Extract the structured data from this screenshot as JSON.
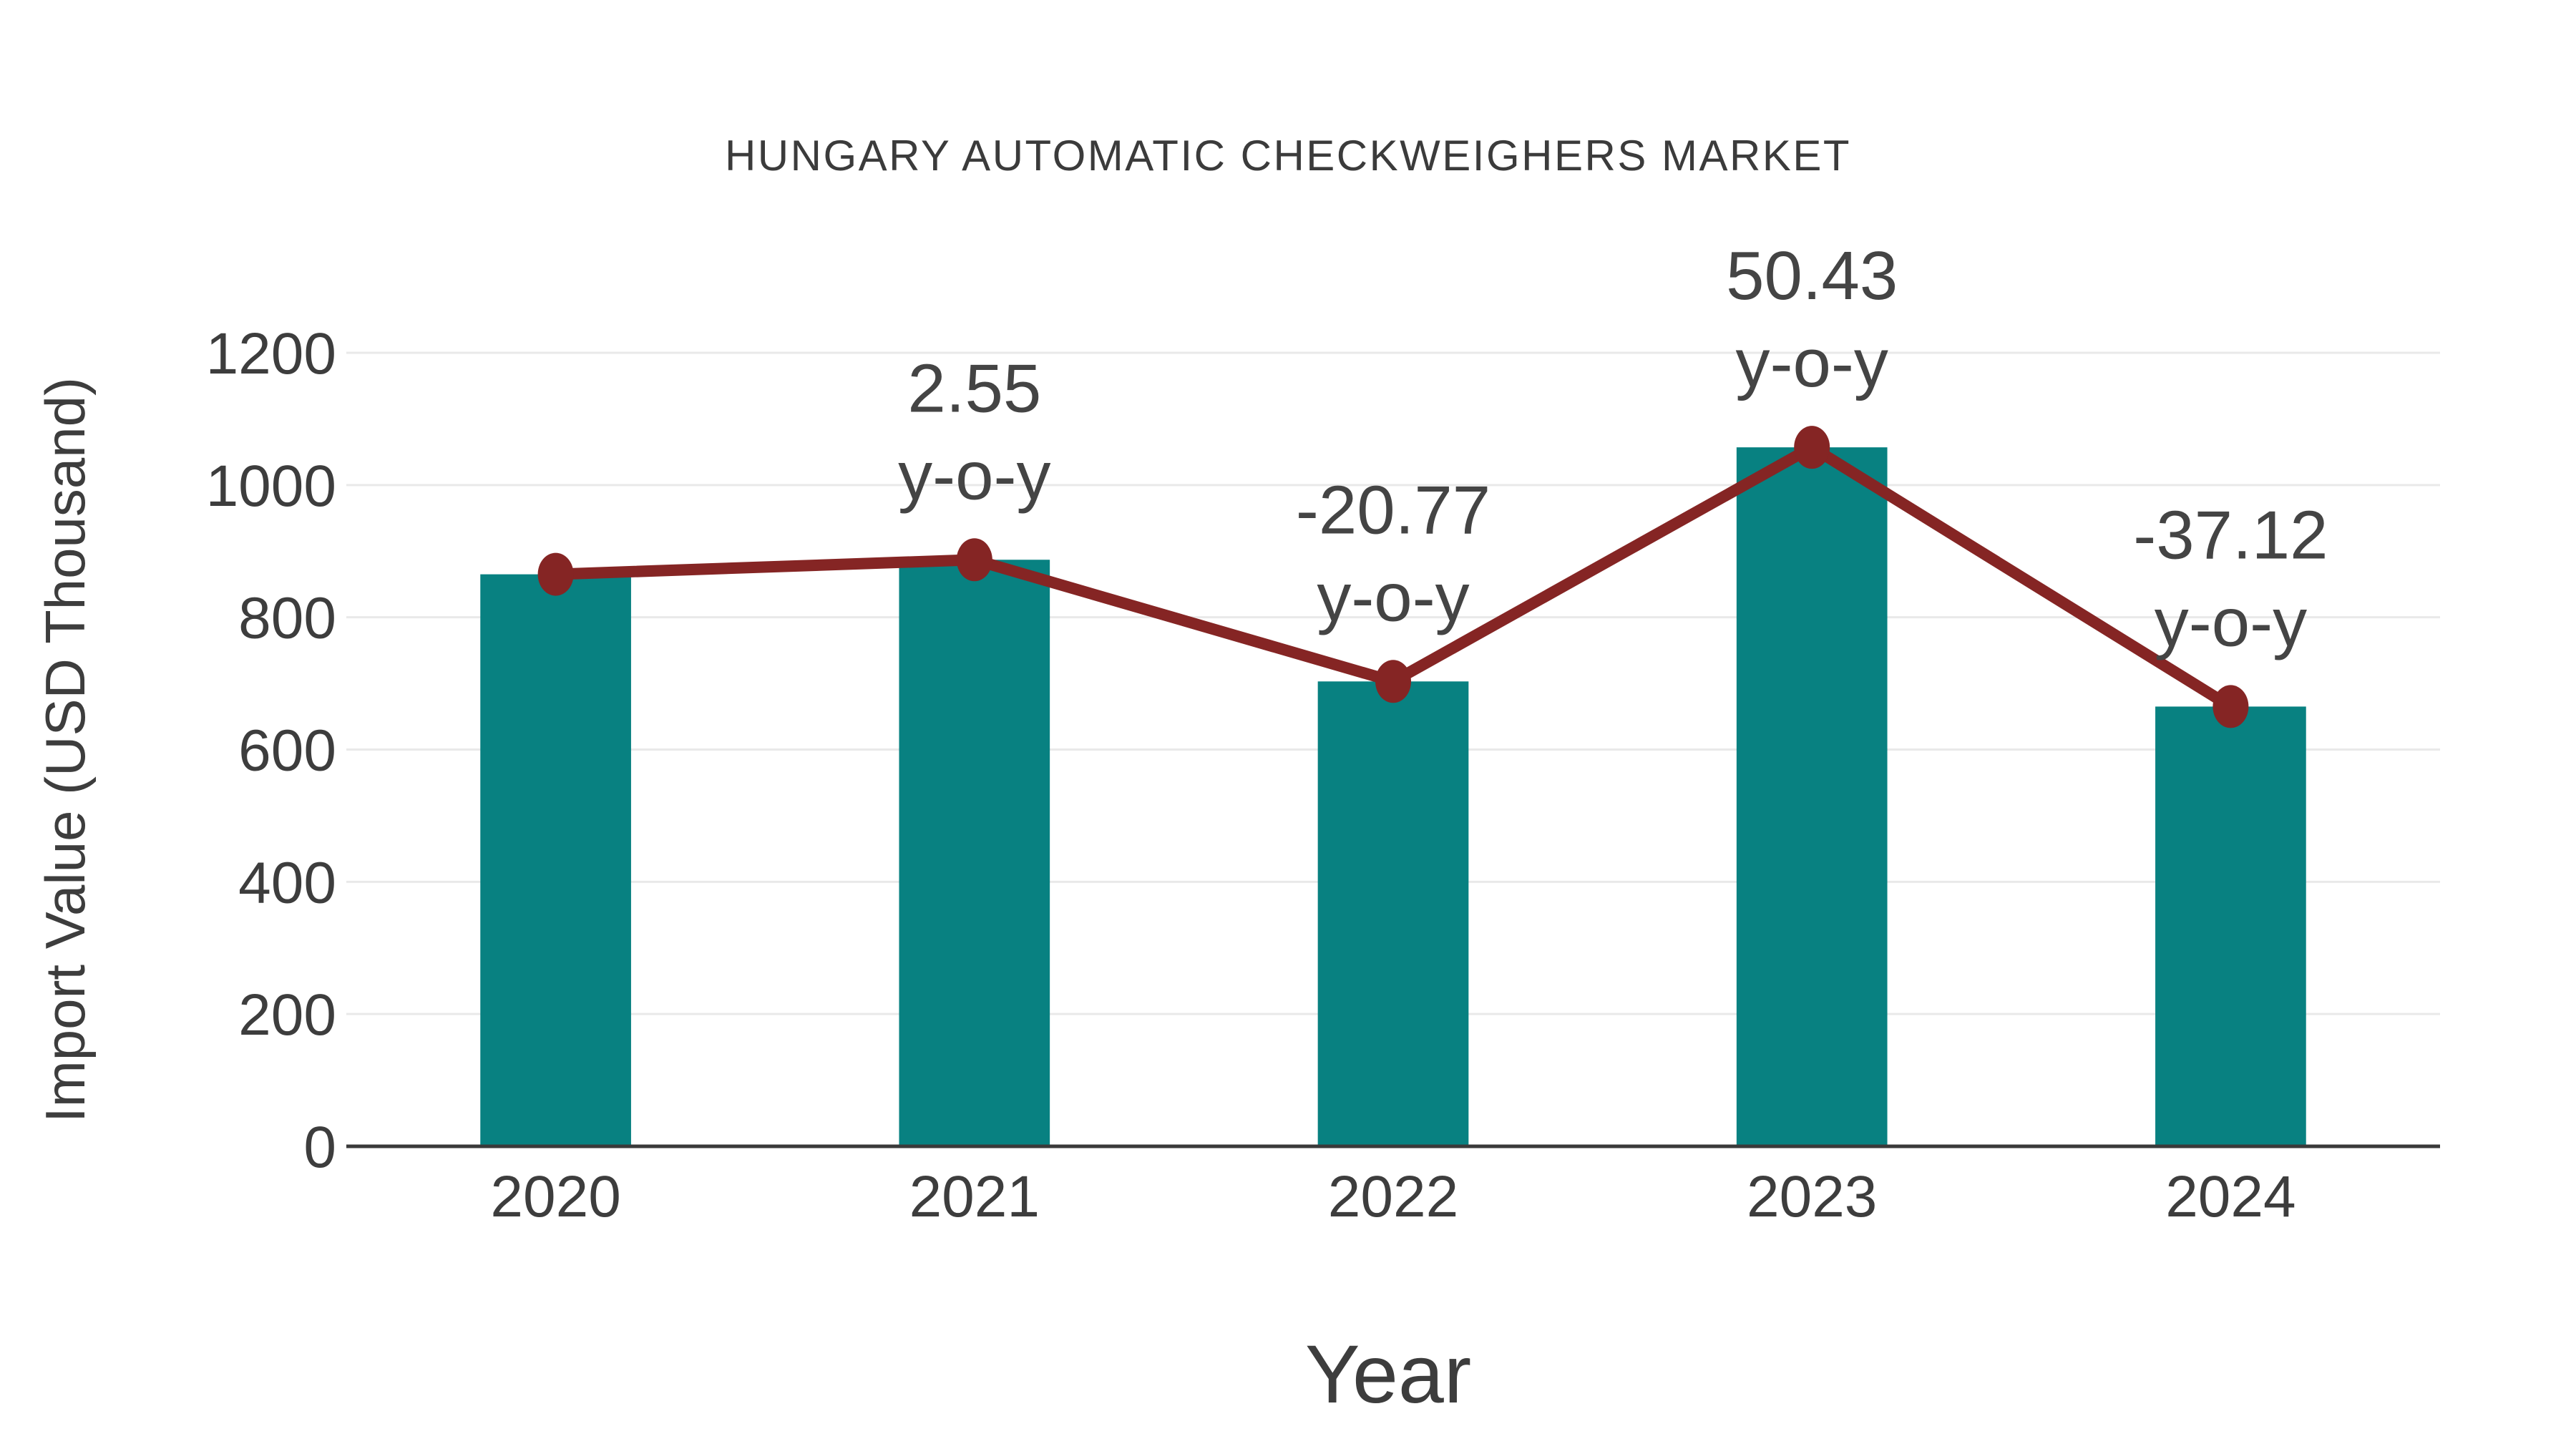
{
  "page": {
    "background": "#ffffff"
  },
  "chart_data": {
    "type": "bar",
    "title": "HUNGARY AUTOMATIC CHECKWEIGHERS MARKET",
    "xlabel": "Year",
    "ylabel": "Import Value (USD Thousand)",
    "categories": [
      "2020",
      "2021",
      "2022",
      "2023",
      "2024"
    ],
    "series": [
      {
        "name": "Import Value (USD Thousand)",
        "type": "bar",
        "values": [
          865,
          887,
          703,
          1057,
          665
        ],
        "color": "#088181"
      },
      {
        "name": "y-o-y change marker line",
        "type": "line",
        "values": [
          865,
          887,
          703,
          1057,
          665
        ],
        "color": "#852524"
      }
    ],
    "annotations": [
      {
        "category": "2021",
        "value_label": "2.55",
        "suffix": "y-o-y"
      },
      {
        "category": "2022",
        "value_label": "-20.77",
        "suffix": "y-o-y"
      },
      {
        "category": "2023",
        "value_label": "50.43",
        "suffix": "y-o-y"
      },
      {
        "category": "2024",
        "value_label": "-37.12",
        "suffix": "y-o-y"
      }
    ],
    "y_ticks": [
      0,
      200,
      400,
      600,
      800,
      1000,
      1200
    ],
    "ylim": [
      0,
      1200
    ],
    "grid": true,
    "legend_position": "none",
    "colors": {
      "bar": "#088181",
      "line": "#852524",
      "marker": "#852524",
      "gridline": "#e9e9e9",
      "axis_line": "#3a3a3a",
      "text": "#3d3d3d"
    }
  }
}
